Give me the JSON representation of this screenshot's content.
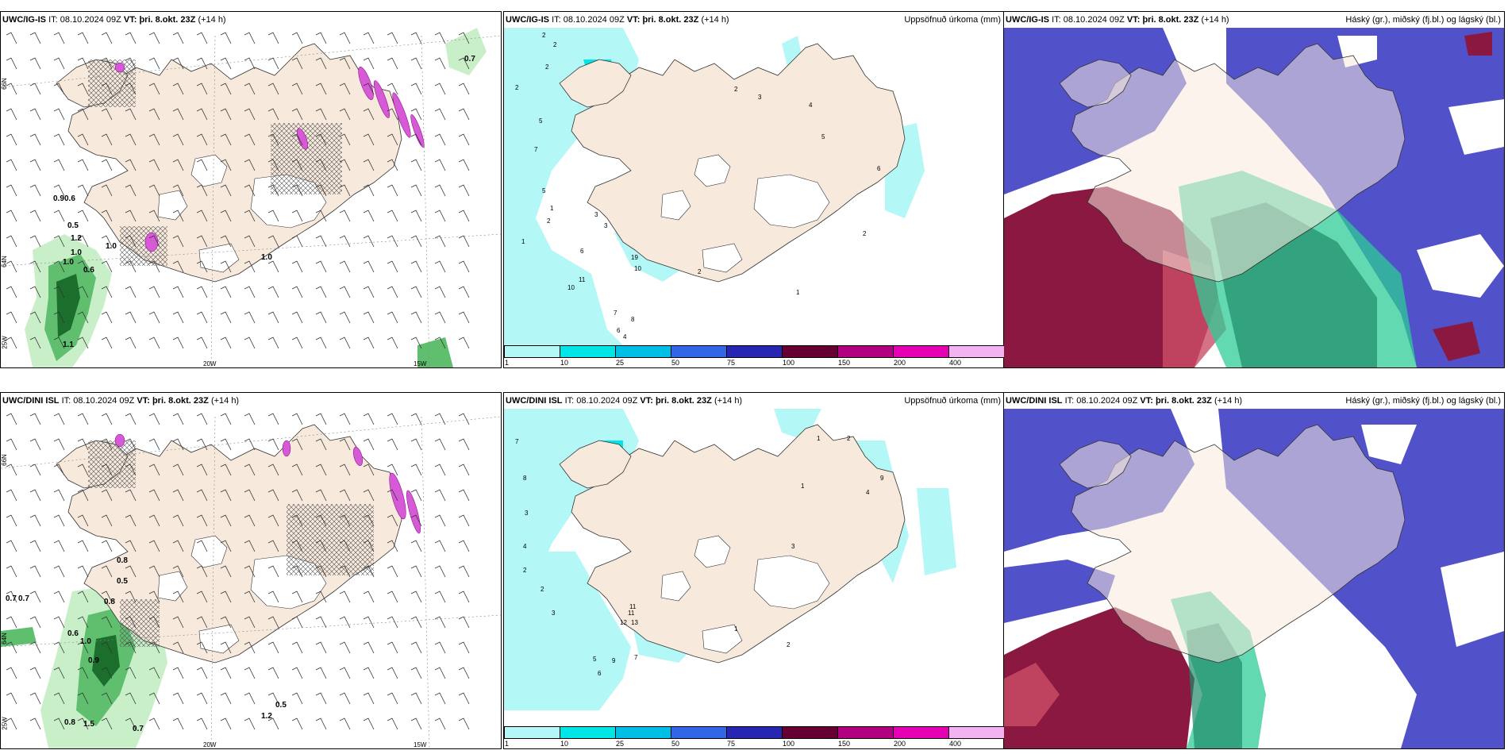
{
  "panels": [
    {
      "model": "UWC/IG-IS",
      "it_label": "IT:",
      "it": "08.10.2024 09Z",
      "vt_label": "VT:",
      "vt": "þri. 8.okt. 23Z",
      "lead": "(+14 h)",
      "right_title": ""
    },
    {
      "model": "UWC/IG-IS",
      "it_label": "IT:",
      "it": "08.10.2024 09Z",
      "vt_label": "VT:",
      "vt": "þri. 8.okt. 23Z",
      "lead": "(+14 h)",
      "right_title": "Uppsöfnuð úrkoma (mm)"
    },
    {
      "model": "UWC/IG-IS",
      "it_label": "IT:",
      "it": "08.10.2024 09Z",
      "vt_label": "VT:",
      "vt": "þri. 8.okt. 23Z",
      "lead": "(+14 h)",
      "right_title": "Háský (gr.), miðský (fj.bl.) og lágský (bl.)"
    },
    {
      "model": "UWC/DINI ISL",
      "it_label": "IT:",
      "it": "08.10.2024 09Z",
      "vt_label": "VT:",
      "vt": "þri. 8.okt. 23Z",
      "lead": "(+14 h)",
      "right_title": ""
    },
    {
      "model": "UWC/DINI ISL",
      "it_label": "IT:",
      "it": "08.10.2024 09Z",
      "vt_label": "VT:",
      "vt": "þri. 8.okt. 23Z",
      "lead": "(+14 h)",
      "right_title": "Uppsöfnuð úrkoma (mm)"
    },
    {
      "model": "UWC/DINI ISL",
      "it_label": "IT:",
      "it": "08.10.2024 09Z",
      "vt_label": "VT:",
      "vt": "þri. 8.okt. 23Z",
      "lead": "(+14 h)",
      "right_title": "Háský (gr.), miðský (fj.bl.) og lágský (bl.)"
    }
  ],
  "axes": {
    "lon_labels": [
      "20W",
      "15W"
    ],
    "lat_labels": [
      "66N",
      "64N"
    ],
    "corner_label": "25W"
  },
  "colorbar": {
    "ticks": [
      "1",
      "10",
      "25",
      "50",
      "75",
      "100",
      "150",
      "200",
      "400"
    ],
    "colors": [
      "#b3f7f7",
      "#00e6e6",
      "#00bfe6",
      "#3366e6",
      "#2626b3",
      "#660033",
      "#b30080",
      "#e600b3",
      "#f2b3f2"
    ]
  },
  "snow_labels_top": [
    "0.7",
    "0.6",
    "0.9",
    "0.5",
    "1.2",
    "1.0",
    "1.0",
    "0.6",
    "1.0",
    "1.0",
    "1.1"
  ],
  "snow_labels_bottom": [
    "0.7",
    "0.7",
    "0.8",
    "0.5",
    "0.8",
    "0.6",
    "1.0",
    "0.9",
    "0.8",
    "1.5",
    "0.7",
    "1.2",
    "0.5"
  ],
  "precip_labels_top": [
    "2",
    "2",
    "2",
    "2",
    "5",
    "7",
    "5",
    "1",
    "1",
    "2",
    "3",
    "3",
    "6",
    "10",
    "11",
    "10",
    "7",
    "6",
    "8",
    "4",
    "19",
    "2",
    "2",
    "3",
    "4",
    "5",
    "6",
    "2",
    "1"
  ],
  "precip_labels_bottom": [
    "7",
    "8",
    "3",
    "4",
    "2",
    "2",
    "3",
    "12",
    "13",
    "11",
    "11",
    "5",
    "9",
    "7",
    "6",
    "1",
    "2",
    "3",
    "4",
    "9",
    "2",
    "1",
    "1"
  ],
  "colors": {
    "land": "#f7e9dc",
    "snow_light": "#c8efc8",
    "snow_mid": "#5fbf6f",
    "snow_dark": "#1c6e2c",
    "precip_low": "#b3f7f7",
    "precip_mid": "#00e6e6",
    "cloud_high": "#5151c9",
    "cloud_mid": "#2ecc95",
    "cloud_low": "#8b1840",
    "magenta": "#d65ad6"
  }
}
